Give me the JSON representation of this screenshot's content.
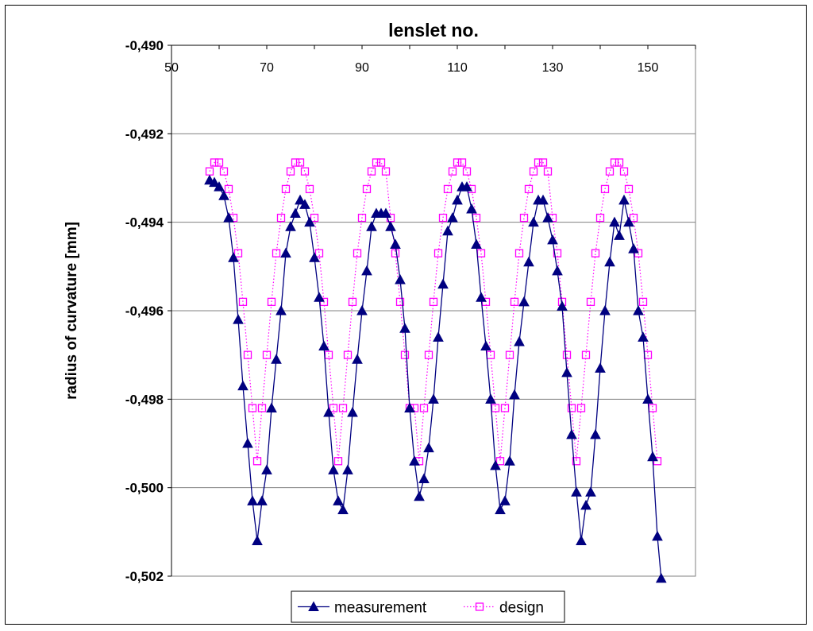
{
  "chart_data": {
    "type": "line",
    "title": "lenslet no.",
    "xlabel": "",
    "ylabel": "radius of curvature [mm]",
    "xlim": [
      50,
      160
    ],
    "ylim": [
      -0.502,
      -0.49
    ],
    "x_axis_position": "top",
    "x_ticks": [
      "50",
      "70",
      "90",
      "110",
      "130",
      "150"
    ],
    "y_ticks": [
      "-0,490",
      "-0,492",
      "-0,494",
      "-0,496",
      "-0,498",
      "-0,500",
      "-0,502"
    ],
    "grid": "horizontal",
    "legend_position": "bottom",
    "series": [
      {
        "name": "measurement",
        "color": "#000080",
        "marker": "triangle",
        "line_style": "solid",
        "points": [
          [
            58,
            -0.49305
          ],
          [
            59,
            -0.4931
          ],
          [
            60,
            -0.4932
          ],
          [
            61,
            -0.4934
          ],
          [
            62,
            -0.4939
          ],
          [
            63,
            -0.4948
          ],
          [
            64,
            -0.4962
          ],
          [
            65,
            -0.4977
          ],
          [
            66,
            -0.499
          ],
          [
            67,
            -0.5003
          ],
          [
            68,
            -0.5012
          ],
          [
            69,
            -0.5003
          ],
          [
            70,
            -0.4996
          ],
          [
            71,
            -0.4982
          ],
          [
            72,
            -0.4971
          ],
          [
            73,
            -0.496
          ],
          [
            74,
            -0.4947
          ],
          [
            75,
            -0.4941
          ],
          [
            76,
            -0.4938
          ],
          [
            77,
            -0.4935
          ],
          [
            78,
            -0.4936
          ],
          [
            79,
            -0.494
          ],
          [
            80,
            -0.4948
          ],
          [
            81,
            -0.4957
          ],
          [
            82,
            -0.4968
          ],
          [
            83,
            -0.4983
          ],
          [
            84,
            -0.4996
          ],
          [
            85,
            -0.5003
          ],
          [
            86,
            -0.5005
          ],
          [
            87,
            -0.4996
          ],
          [
            88,
            -0.4983
          ],
          [
            89,
            -0.4971
          ],
          [
            90,
            -0.496
          ],
          [
            91,
            -0.4951
          ],
          [
            92,
            -0.4941
          ],
          [
            93,
            -0.4938
          ],
          [
            94,
            -0.4938
          ],
          [
            95,
            -0.4938
          ],
          [
            96,
            -0.4941
          ],
          [
            97,
            -0.4945
          ],
          [
            98,
            -0.4953
          ],
          [
            99,
            -0.4964
          ],
          [
            100,
            -0.4982
          ],
          [
            101,
            -0.4994
          ],
          [
            102,
            -0.5002
          ],
          [
            103,
            -0.4998
          ],
          [
            104,
            -0.4991
          ],
          [
            105,
            -0.498
          ],
          [
            106,
            -0.4966
          ],
          [
            107,
            -0.4954
          ],
          [
            108,
            -0.4942
          ],
          [
            109,
            -0.4939
          ],
          [
            110,
            -0.4935
          ],
          [
            111,
            -0.4932
          ],
          [
            112,
            -0.4932
          ],
          [
            113,
            -0.4937
          ],
          [
            114,
            -0.4945
          ],
          [
            115,
            -0.4957
          ],
          [
            116,
            -0.4968
          ],
          [
            117,
            -0.498
          ],
          [
            118,
            -0.4995
          ],
          [
            119,
            -0.5005
          ],
          [
            120,
            -0.5003
          ],
          [
            121,
            -0.4994
          ],
          [
            122,
            -0.4979
          ],
          [
            123,
            -0.4967
          ],
          [
            124,
            -0.4958
          ],
          [
            125,
            -0.4949
          ],
          [
            126,
            -0.494
          ],
          [
            127,
            -0.4935
          ],
          [
            128,
            -0.4935
          ],
          [
            129,
            -0.4939
          ],
          [
            130,
            -0.4944
          ],
          [
            131,
            -0.4951
          ],
          [
            132,
            -0.4959
          ],
          [
            133,
            -0.4974
          ],
          [
            134,
            -0.4988
          ],
          [
            135,
            -0.5001
          ],
          [
            136,
            -0.5012
          ],
          [
            137,
            -0.5004
          ],
          [
            138,
            -0.5001
          ],
          [
            139,
            -0.4988
          ],
          [
            140,
            -0.4973
          ],
          [
            141,
            -0.496
          ],
          [
            142,
            -0.4949
          ],
          [
            143,
            -0.494
          ],
          [
            144,
            -0.4943
          ],
          [
            145,
            -0.4935
          ],
          [
            146,
            -0.494
          ],
          [
            147,
            -0.4946
          ],
          [
            148,
            -0.496
          ],
          [
            149,
            -0.4966
          ],
          [
            150,
            -0.498
          ],
          [
            151,
            -0.4993
          ],
          [
            152,
            -0.5011
          ],
          [
            152.8,
            -0.50205
          ]
        ]
      },
      {
        "name": "design",
        "color": "#ff00ff",
        "marker": "square",
        "line_style": "dotted",
        "points": [
          [
            58,
            -0.49285
          ],
          [
            59,
            -0.49265
          ],
          [
            60,
            -0.49265
          ],
          [
            61,
            -0.49285
          ],
          [
            62,
            -0.49325
          ],
          [
            63,
            -0.4939
          ],
          [
            64,
            -0.4947
          ],
          [
            65,
            -0.4958
          ],
          [
            66,
            -0.497
          ],
          [
            67,
            -0.4982
          ],
          [
            68,
            -0.4994
          ],
          [
            69,
            -0.4982
          ],
          [
            70,
            -0.497
          ],
          [
            71,
            -0.4958
          ],
          [
            72,
            -0.4947
          ],
          [
            73,
            -0.4939
          ],
          [
            74,
            -0.49325
          ],
          [
            75,
            -0.49285
          ],
          [
            76,
            -0.49265
          ],
          [
            77,
            -0.49265
          ],
          [
            78,
            -0.49285
          ],
          [
            79,
            -0.49325
          ],
          [
            80,
            -0.4939
          ],
          [
            81,
            -0.4947
          ],
          [
            82,
            -0.4958
          ],
          [
            83,
            -0.497
          ],
          [
            84,
            -0.4982
          ],
          [
            85,
            -0.4994
          ],
          [
            86,
            -0.4982
          ],
          [
            87,
            -0.497
          ],
          [
            88,
            -0.4958
          ],
          [
            89,
            -0.4947
          ],
          [
            90,
            -0.4939
          ],
          [
            91,
            -0.49325
          ],
          [
            92,
            -0.49285
          ],
          [
            93,
            -0.49265
          ],
          [
            94,
            -0.49265
          ],
          [
            95,
            -0.49285
          ],
          [
            96,
            -0.4939
          ],
          [
            97,
            -0.4947
          ],
          [
            98,
            -0.4958
          ],
          [
            99,
            -0.497
          ],
          [
            100,
            -0.4982
          ],
          [
            101,
            -0.4982
          ],
          [
            102,
            -0.4994
          ],
          [
            103,
            -0.4982
          ],
          [
            104,
            -0.497
          ],
          [
            105,
            -0.4958
          ],
          [
            106,
            -0.4947
          ],
          [
            107,
            -0.4939
          ],
          [
            108,
            -0.49325
          ],
          [
            109,
            -0.49285
          ],
          [
            110,
            -0.49265
          ],
          [
            111,
            -0.49265
          ],
          [
            112,
            -0.49285
          ],
          [
            113,
            -0.49325
          ],
          [
            114,
            -0.4939
          ],
          [
            115,
            -0.4947
          ],
          [
            116,
            -0.4958
          ],
          [
            117,
            -0.497
          ],
          [
            118,
            -0.4982
          ],
          [
            119,
            -0.4994
          ],
          [
            120,
            -0.4982
          ],
          [
            121,
            -0.497
          ],
          [
            122,
            -0.4958
          ],
          [
            123,
            -0.4947
          ],
          [
            124,
            -0.4939
          ],
          [
            125,
            -0.49325
          ],
          [
            126,
            -0.49285
          ],
          [
            127,
            -0.49265
          ],
          [
            128,
            -0.49265
          ],
          [
            129,
            -0.49285
          ],
          [
            130,
            -0.4939
          ],
          [
            131,
            -0.4947
          ],
          [
            132,
            -0.4958
          ],
          [
            133,
            -0.497
          ],
          [
            134,
            -0.4982
          ],
          [
            135,
            -0.4994
          ],
          [
            136,
            -0.4982
          ],
          [
            137,
            -0.497
          ],
          [
            138,
            -0.4958
          ],
          [
            139,
            -0.4947
          ],
          [
            140,
            -0.4939
          ],
          [
            141,
            -0.49325
          ],
          [
            142,
            -0.49285
          ],
          [
            143,
            -0.49265
          ],
          [
            144,
            -0.49265
          ],
          [
            145,
            -0.49285
          ],
          [
            146,
            -0.49325
          ],
          [
            147,
            -0.4939
          ],
          [
            148,
            -0.4947
          ],
          [
            149,
            -0.4958
          ],
          [
            150,
            -0.497
          ],
          [
            151,
            -0.4982
          ],
          [
            152,
            -0.4994
          ]
        ]
      }
    ]
  }
}
